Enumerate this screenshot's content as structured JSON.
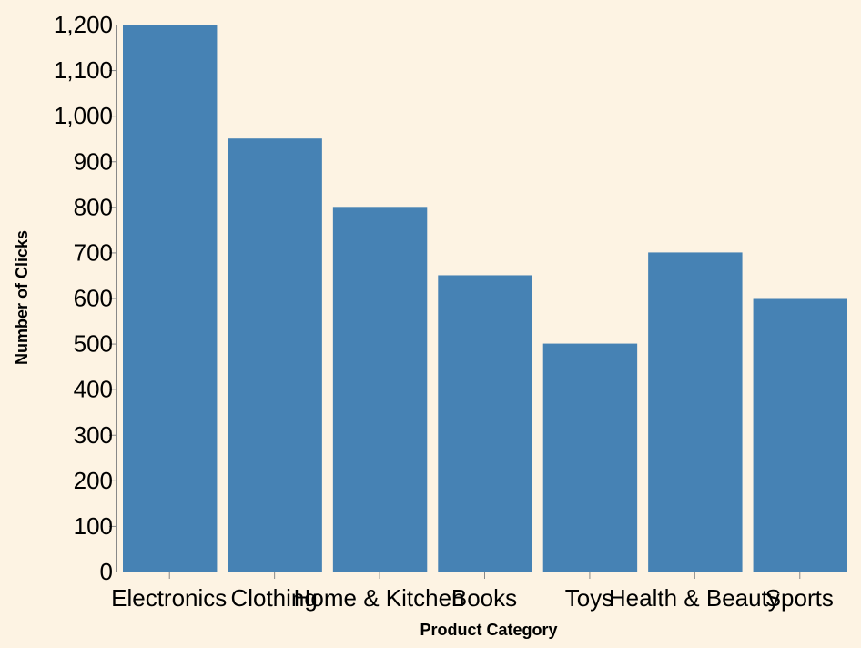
{
  "chart_data": {
    "type": "bar",
    "categories": [
      "Electronics",
      "Clothing",
      "Home & Kitchen",
      "Books",
      "Toys",
      "Health & Beauty",
      "Sports"
    ],
    "values": [
      1200,
      950,
      800,
      650,
      500,
      700,
      600
    ],
    "xlabel": "Product Category",
    "ylabel": "Number of Clicks",
    "ylim": [
      0,
      1200
    ],
    "yticks": [
      0,
      100,
      200,
      300,
      400,
      500,
      600,
      700,
      800,
      900,
      1000,
      1100,
      1200
    ],
    "grid": false,
    "bar_color": "#4682b4",
    "background": "#fdf3e3"
  }
}
